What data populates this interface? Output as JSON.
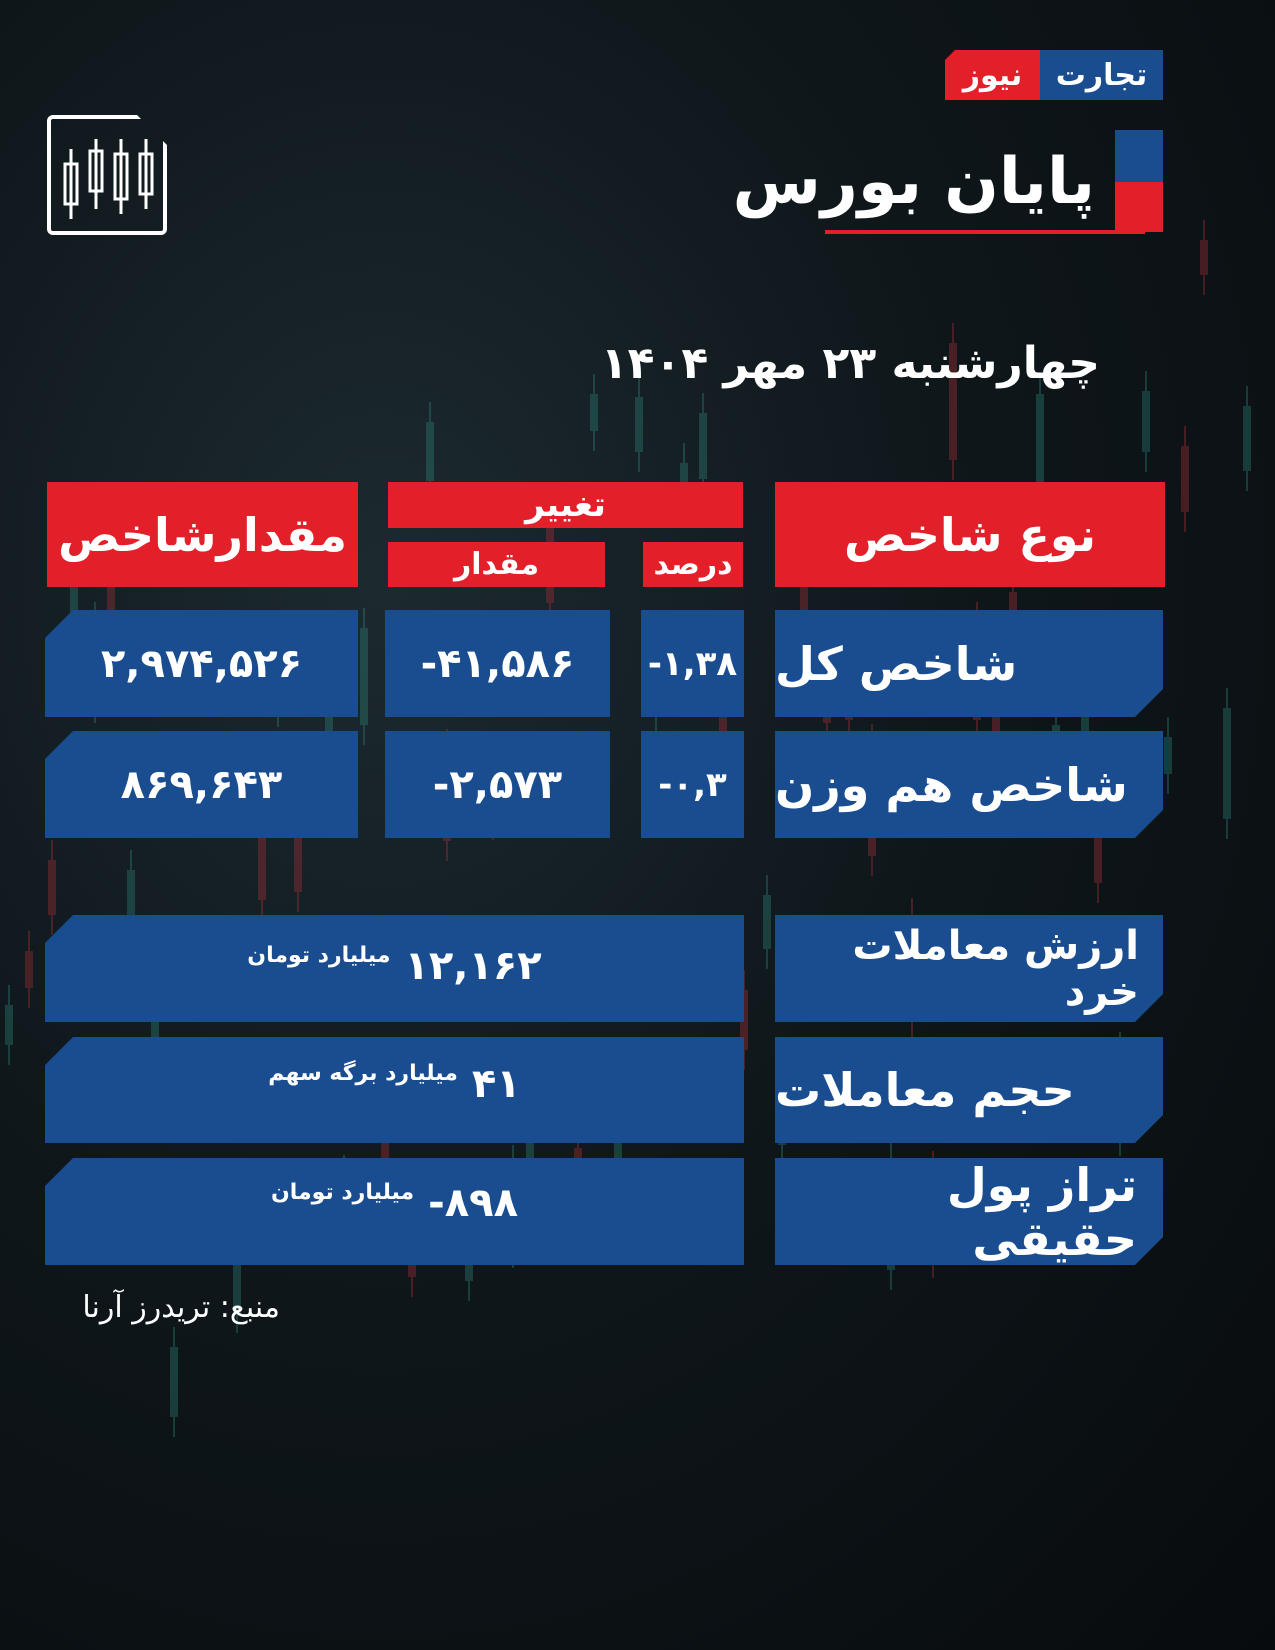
{
  "brand": {
    "part1": "تجارت",
    "part2": "نیوز",
    "color_red": "#e3202a",
    "color_blue": "#1a4d8f"
  },
  "title": "پایان بورس",
  "date": "چهارشنبه ۲۳ مهر ۱۴۰۴",
  "icons": {
    "chart": "candlestick-chart-icon"
  },
  "table": {
    "headers": {
      "index_type": "نوع شاخص",
      "change": "تغییر",
      "percent": "درصد",
      "amount": "مقدار",
      "index_value": "مقدارشاخص"
    },
    "rows": [
      {
        "label": "شاخص کل",
        "percent": "-۱,۳۸",
        "change": "-۴۱,۵۸۶",
        "value": "۲,۹۷۴,۵۲۶"
      },
      {
        "label": "شاخص هم وزن",
        "percent": "-۰,۳",
        "change": "-۲,۵۷۳",
        "value": "۸۶۹,۶۴۳"
      }
    ]
  },
  "stats": [
    {
      "label": "ارزش معاملات خرد",
      "value": "۱۲,۱۶۲",
      "unit": "میلیارد تومان"
    },
    {
      "label": "حجم معاملات",
      "value": "۴۱",
      "unit": "میلیارد برگه سهم"
    },
    {
      "label": "تراز پول حقیقی",
      "value": "-۸۹۸",
      "unit": "میلیارد تومان"
    }
  ],
  "source": "منبع: تریدرز آرنا"
}
